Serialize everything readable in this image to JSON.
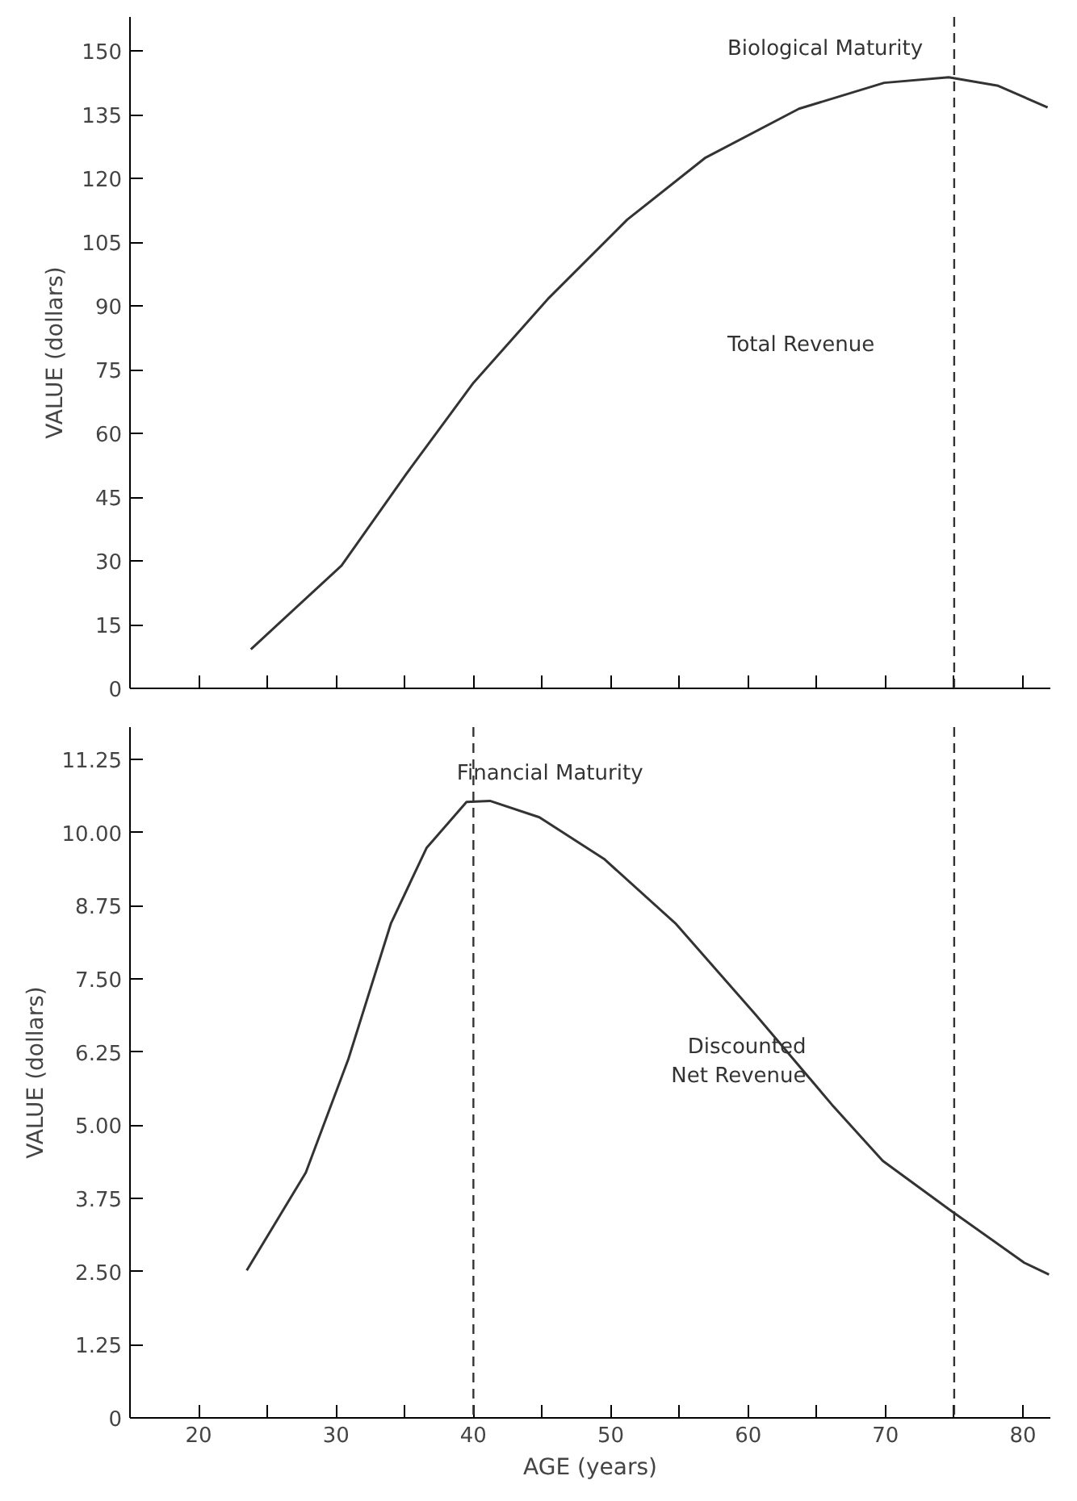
{
  "chart_data": [
    {
      "type": "line",
      "ylabel": "VALUE (dollars)",
      "tick_labels": "y",
      "grid": false,
      "xlim": [
        15,
        82
      ],
      "xticks": [
        {
          "value": 20,
          "label": null
        },
        {
          "value": 25,
          "label": null
        },
        {
          "value": 30,
          "label": null
        },
        {
          "value": 35,
          "label": null
        },
        {
          "value": 40,
          "label": null
        },
        {
          "value": 45,
          "label": null
        },
        {
          "value": 50,
          "label": null
        },
        {
          "value": 55,
          "label": null
        },
        {
          "value": 60,
          "label": null
        },
        {
          "value": 65,
          "label": null
        },
        {
          "value": 70,
          "label": null
        },
        {
          "value": 75,
          "label": null
        },
        {
          "value": 80,
          "label": null
        }
      ],
      "ylim": [
        0,
        158
      ],
      "yticks": [
        0,
        15,
        30,
        45,
        60,
        75,
        90,
        105,
        120,
        135,
        150
      ],
      "series": [
        {
          "color": "#333333",
          "x": [
            23.8,
            30.4,
            35.1,
            40.0,
            45.5,
            51.2,
            56.9,
            63.7,
            69.9,
            74.6,
            78.2,
            81.8
          ],
          "values": [
            9.2,
            28.9,
            50.4,
            71.9,
            91.9,
            110.3,
            124.9,
            136.4,
            142.5,
            143.8,
            141.8,
            136.7
          ]
        }
      ],
      "ref_lines": [
        {
          "axis": "x",
          "value": 75,
          "line_style": "dashed",
          "color": "#333333"
        }
      ],
      "annotations": [
        {
          "text": "Biological Maturity",
          "x": 74.6,
          "y": 143.8
        },
        "Total Revenue"
      ]
    },
    {
      "type": "line",
      "xlabel": "AGE (years)",
      "ylabel": "VALUE (dollars)",
      "grid": false,
      "xlim": [
        15,
        82
      ],
      "xticks": [
        20,
        {
          "value": 25,
          "label": null
        },
        30,
        {
          "value": 35,
          "label": null
        },
        40,
        {
          "value": 45,
          "label": null
        },
        50,
        {
          "value": 55,
          "label": null
        },
        60,
        {
          "value": 65,
          "label": null
        },
        70,
        {
          "value": 75,
          "label": null
        },
        80
      ],
      "ylim": [
        0,
        11.8
      ],
      "yticks": [
        {
          "value": 0,
          "label": "0"
        },
        {
          "value": 1.25,
          "label": "1.25"
        },
        {
          "value": 2.5,
          "label": "2.50"
        },
        {
          "value": 3.75,
          "label": "3.75"
        },
        {
          "value": 5,
          "label": "5.00"
        },
        {
          "value": 6.25,
          "label": "6.25"
        },
        {
          "value": 7.5,
          "label": "7.50"
        },
        {
          "value": 8.75,
          "label": "8.75"
        },
        {
          "value": 10,
          "label": "10.00"
        },
        {
          "value": 11.25,
          "label": "11.25"
        }
      ],
      "series": [
        {
          "color": "#333333",
          "x": [
            23.5,
            27.8,
            30.9,
            34.0,
            36.6,
            39.5,
            41.2,
            44.8,
            49.5,
            54.7,
            60.5,
            66.1,
            69.8,
            74.7,
            80.1,
            81.9
          ],
          "values": [
            2.52,
            4.19,
            6.13,
            8.45,
            9.74,
            10.52,
            10.54,
            10.26,
            9.55,
            8.45,
            6.9,
            5.35,
            4.39,
            3.55,
            2.65,
            2.45
          ]
        }
      ],
      "ref_lines": [
        {
          "axis": "x",
          "value": 40,
          "line_style": "dashed",
          "color": "#333333"
        },
        {
          "axis": "x",
          "value": 75,
          "line_style": "dashed",
          "color": "#333333"
        }
      ],
      "annotations": [
        {
          "text": "Financial Maturity",
          "x": 39.5,
          "y": 10.52
        },
        {
          "text": "Discounted\nNet Revenue",
          "x": 66.1,
          "y": 5.35
        }
      ]
    }
  ]
}
